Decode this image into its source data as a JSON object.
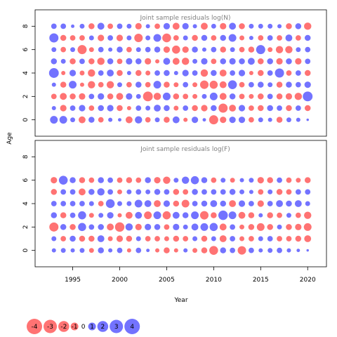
{
  "chart_data": {
    "type": "scatter",
    "ylabel": "Age",
    "xlabel": "Year",
    "x_ticks": [
      "1995",
      "2000",
      "2005",
      "2010",
      "2015",
      "2020"
    ],
    "y_ticks": [
      "0",
      "2",
      "4",
      "6",
      "8"
    ],
    "xlim": [
      1991,
      2022
    ],
    "grid": false,
    "bubble_scale_max_abs": 4,
    "colors": {
      "positive": "#0000ff",
      "negative": "#ff0000",
      "alpha": 0.55
    },
    "panels": [
      {
        "title": "Joint sample residuals log(N)",
        "years": [
          1993,
          2020
        ],
        "ages": [
          0,
          8
        ],
        "ylim": [
          -1.4,
          9.4
        ],
        "residuals": [
          [
            1.0,
            1.0,
            0.4,
            -0.8,
            0.6,
            -0.5,
            0.3,
            0.2,
            -0.8,
            0.9,
            -0.5,
            0.4,
            -0.6,
            0.8,
            -0.3,
            0.7,
            0.2,
            -1.4,
            -0.7,
            0.7,
            0.7,
            -0.5,
            0.4,
            0.3,
            -0.6,
            0.4,
            0.3,
            0.1
          ],
          [
            0.3,
            -0.7,
            0.5,
            0.7,
            -0.5,
            0.6,
            0.7,
            -0.6,
            -0.3,
            0.5,
            0.4,
            0.8,
            0.6,
            -0.4,
            0.5,
            -0.6,
            -0.7,
            0.6,
            -1.4,
            -0.8,
            0.7,
            -0.5,
            -0.6,
            0.6,
            0.5,
            -0.6,
            0.5,
            -0.6
          ],
          [
            -0.5,
            -0.8,
            -0.6,
            -0.7,
            0.5,
            0.7,
            -0.6,
            -0.8,
            0.7,
            0.4,
            -1.6,
            -0.9,
            1.0,
            -0.6,
            -0.5,
            -0.4,
            0.4,
            1.0,
            -0.8,
            0.6,
            -0.5,
            -0.4,
            -0.6,
            0.5,
            -0.6,
            -0.7,
            -0.9,
            1.6
          ],
          [
            0.3,
            -0.6,
            1.0,
            -0.3,
            -0.9,
            -0.5,
            -0.9,
            0.4,
            -0.5,
            0.6,
            -0.5,
            1.0,
            -0.6,
            -0.4,
            0.5,
            -0.4,
            -1.2,
            -1.1,
            -0.8,
            1.3,
            -0.5,
            0.5,
            0.6,
            0.4,
            -0.6,
            0.6,
            0.5,
            0.7
          ],
          [
            1.6,
            -0.3,
            0.7,
            -0.4,
            -0.9,
            0.5,
            0.8,
            -0.6,
            0.3,
            -0.6,
            -0.4,
            0.5,
            0.6,
            0.3,
            0.7,
            0.5,
            -0.9,
            0.6,
            -0.8,
            0.5,
            0.7,
            -0.3,
            -0.6,
            0.5,
            1.4,
            -0.5,
            0.5,
            -0.6
          ],
          [
            0.6,
            0.4,
            -0.6,
            0.5,
            -0.6,
            -0.9,
            0.6,
            -0.5,
            0.7,
            0.6,
            -0.7,
            -0.3,
            0.8,
            -0.8,
            -0.9,
            0.4,
            0.7,
            -0.5,
            0.6,
            0.7,
            0.6,
            0.8,
            -0.6,
            0.6,
            -0.7,
            0.6,
            -0.7,
            0.5
          ],
          [
            0.4,
            -0.5,
            0.4,
            -1.4,
            -0.4,
            0.5,
            0.3,
            0.6,
            -0.5,
            0.4,
            0.5,
            0.6,
            -0.7,
            -1.1,
            -0.7,
            0.6,
            0.3,
            0.5,
            -0.6,
            0.4,
            -0.5,
            -0.6,
            1.4,
            -0.4,
            -0.9,
            -0.9,
            0.4,
            0.5
          ],
          [
            1.4,
            -0.6,
            -0.5,
            -0.5,
            0.4,
            -0.7,
            0.5,
            -0.7,
            0.4,
            -1.2,
            0.4,
            1.0,
            -1.3,
            -0.5,
            0.4,
            -0.6,
            0.6,
            -0.5,
            0.6,
            1.0,
            -0.4,
            0.3,
            -0.5,
            0.5,
            -0.5,
            0.8,
            -0.5,
            0.6
          ],
          [
            0.5,
            0.5,
            0.2,
            0.4,
            -0.6,
            0.8,
            -0.5,
            0.5,
            0.4,
            -0.7,
            0.3,
            -0.5,
            0.7,
            -0.8,
            0.7,
            0.3,
            -0.8,
            0.4,
            -0.7,
            0.8,
            -0.6,
            0.4,
            0.4,
            0.4,
            0.3,
            -0.6,
            0.6,
            -0.9
          ]
        ]
      },
      {
        "title": "Joint sample residuals log(F)",
        "years": [
          1993,
          2020
        ],
        "ages": [
          0,
          6
        ],
        "ylim": [
          -1.4,
          9.4
        ],
        "residuals": [
          [
            0.3,
            0.4,
            0.3,
            0.4,
            -0.4,
            0.6,
            0.3,
            0.5,
            -0.3,
            0.5,
            0.2,
            -0.3,
            -0.6,
            -0.3,
            0.3,
            -0.4,
            -0.6,
            -1.3,
            0.6,
            0.5,
            -1.2,
            0.5,
            0.3,
            0.4,
            0.5,
            0.3,
            0.2,
            0.1
          ],
          [
            0.4,
            -0.5,
            0.6,
            -0.6,
            -0.6,
            0.8,
            -0.4,
            -0.7,
            -0.6,
            0.4,
            -0.5,
            -0.5,
            -0.4,
            -0.6,
            -0.5,
            0.4,
            -0.6,
            0.4,
            -0.8,
            0.5,
            -0.4,
            -0.5,
            0.4,
            0.5,
            -0.5,
            -0.5,
            -0.6,
            -0.8
          ],
          [
            -1.4,
            0.6,
            -0.6,
            1.1,
            0.5,
            0.6,
            -0.8,
            -1.5,
            0.9,
            -0.7,
            0.7,
            0.6,
            -0.5,
            0.7,
            0.4,
            0.8,
            1.0,
            1.1,
            -0.8,
            0.5,
            -0.4,
            -0.6,
            -1.0,
            -0.6,
            0.4,
            -0.6,
            -0.7,
            -1.0
          ],
          [
            0.6,
            -0.6,
            0.5,
            1.1,
            -0.4,
            0.4,
            0.7,
            -0.3,
            -0.8,
            0.8,
            -1.0,
            1.0,
            -1.1,
            0.8,
            0.6,
            1.0,
            -1.2,
            -0.6,
            1.5,
            1.0,
            -0.8,
            -0.6,
            0.3,
            -0.6,
            -0.5,
            0.4,
            -0.5,
            -0.9
          ],
          [
            0.5,
            0.5,
            0.5,
            0.5,
            0.4,
            -0.5,
            1.3,
            0.4,
            0.4,
            1.0,
            0.8,
            -0.8,
            0.7,
            -0.6,
            -1.0,
            0.5,
            0.6,
            0.8,
            0.6,
            -0.8,
            0.7,
            0.5,
            -0.7,
            0.5,
            0.8,
            0.6,
            0.8,
            0.4
          ],
          [
            -0.6,
            0.5,
            0.5,
            -0.8,
            0.6,
            0.9,
            0.5,
            -0.4,
            0.4,
            0.5,
            0.4,
            0.6,
            0.5,
            -0.6,
            -0.5,
            0.6,
            0.5,
            0.5,
            0.5,
            0.6,
            0.4,
            0.3,
            -0.5,
            0.4,
            -0.6,
            -0.5,
            0.5,
            0.5
          ],
          [
            -0.7,
            1.3,
            0.6,
            -0.6,
            -0.5,
            0.6,
            0.5,
            -0.5,
            -0.6,
            -0.5,
            0.6,
            -0.7,
            -0.9,
            0.4,
            0.9,
            1.1,
            0.6,
            -0.5,
            0.4,
            -0.4,
            0.3,
            0.4,
            -0.7,
            -0.6,
            0.5,
            -0.5,
            -0.4,
            -0.6
          ]
        ]
      }
    ],
    "legend": {
      "values": [
        -4,
        -3,
        -2,
        -1,
        0,
        1,
        2,
        3,
        4
      ],
      "labels": [
        "-4",
        "-3",
        "-2",
        "-1",
        "0",
        "1",
        "2",
        "3",
        "4"
      ]
    }
  }
}
